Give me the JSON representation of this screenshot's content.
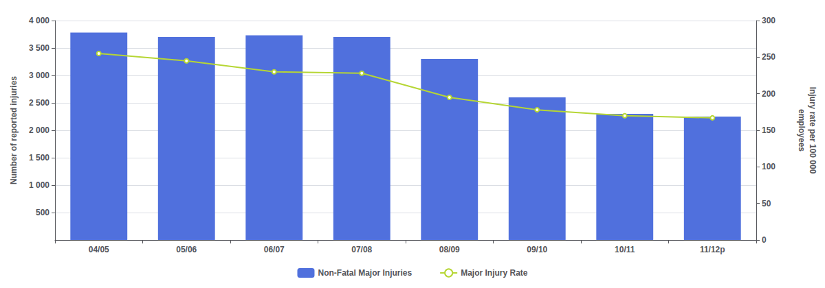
{
  "chart_data": {
    "type": "bar",
    "categories": [
      "04/05",
      "05/06",
      "06/07",
      "07/08",
      "08/09",
      "09/10",
      "10/11",
      "11/12p"
    ],
    "series": [
      {
        "name": "Non-Fatal Major Injuries",
        "type": "bar",
        "values": [
          3780,
          3700,
          3730,
          3700,
          3300,
          2600,
          2300,
          2250
        ]
      },
      {
        "name": "Major Injury Rate",
        "type": "line",
        "axis": "y2",
        "values": [
          255,
          245,
          230,
          228,
          195,
          178,
          170,
          167
        ]
      }
    ],
    "ylabel": "Number of reported injuries",
    "y2label": "Injury rate per 100 000\nemployees",
    "ylim": [
      0,
      4000
    ],
    "yticks": [
      500,
      {
        "value": 1000,
        "label": "1 000"
      },
      {
        "value": 1500,
        "label": "1 500"
      },
      {
        "value": 2000,
        "label": "2 000"
      },
      {
        "value": 2500,
        "label": "2 500"
      },
      {
        "value": 3000,
        "label": "3 000"
      },
      {
        "value": 3500,
        "label": "3 500"
      },
      {
        "value": 4000,
        "label": "4 000"
      }
    ],
    "y2lim": [
      0,
      300
    ],
    "y2ticks": [
      0,
      50,
      100,
      150,
      200,
      250,
      300
    ],
    "grid": true,
    "legend": "bottom"
  }
}
